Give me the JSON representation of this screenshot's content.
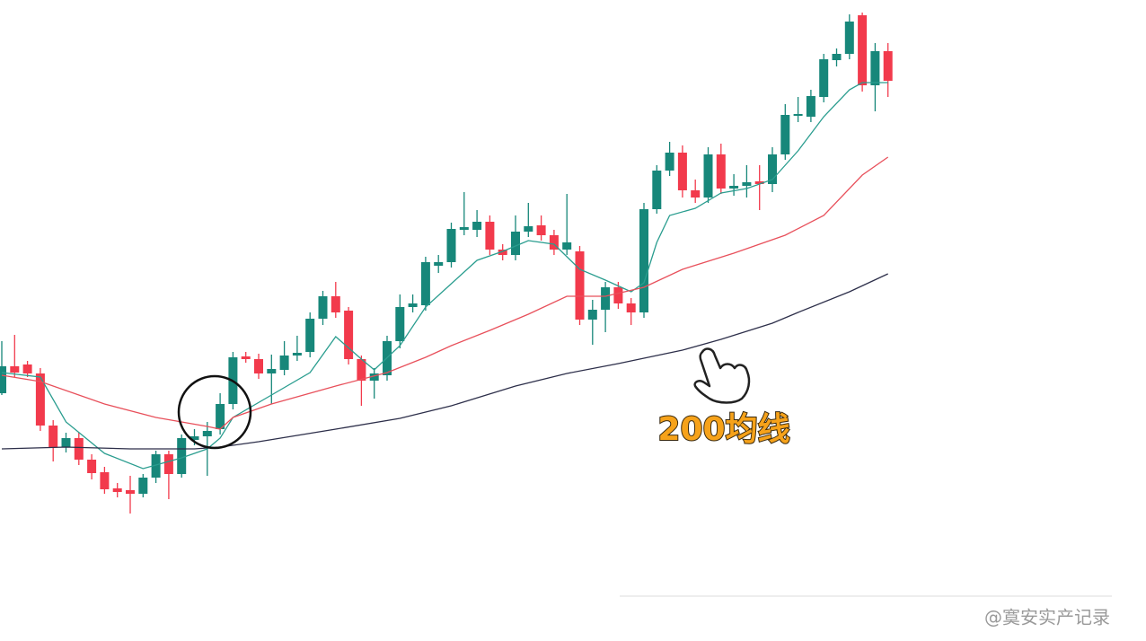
{
  "chart_data": {
    "type": "candlestick",
    "ylim": [
      0,
      714
    ],
    "up_color": "#17877a",
    "down_color": "#f23a4c",
    "open": [
      276,
      306,
      308,
      298,
      240,
      216,
      226,
      202,
      188,
      170,
      168,
      164,
      182,
      208,
      186,
      224,
      228,
      236,
      264,
      317,
      314,
      298,
      302,
      318,
      322,
      359,
      384,
      368,
      314,
      290,
      296,
      334,
      372,
      374,
      418,
      422,
      458,
      458,
      467,
      436,
      430,
      456,
      463,
      452,
      436,
      434,
      358,
      369,
      394,
      376,
      366,
      481,
      524,
      544,
      502,
      494,
      542,
      504,
      507,
      512,
      509,
      542,
      585,
      584,
      606,
      647,
      654,
      697,
      619,
      657
    ],
    "close": [
      306,
      299,
      298,
      240,
      216,
      226,
      202,
      187,
      169,
      166,
      164,
      182,
      208,
      186,
      226,
      228,
      234,
      264,
      316,
      314,
      298,
      303,
      318,
      321,
      359,
      384,
      366,
      314,
      290,
      298,
      334,
      372,
      376,
      422,
      422,
      459,
      461,
      467,
      436,
      430,
      456,
      462,
      452,
      436,
      444,
      358,
      369,
      394,
      376,
      366,
      481,
      524,
      544,
      502,
      494,
      542,
      504,
      507,
      511,
      509,
      542,
      586,
      587,
      607,
      648,
      654,
      690,
      619,
      657,
      624
    ],
    "high": [
      334,
      341,
      312,
      304,
      246,
      232,
      232,
      208,
      194,
      176,
      184,
      186,
      212,
      212,
      230,
      236,
      244,
      276,
      322,
      322,
      320,
      319,
      334,
      340,
      366,
      390,
      400,
      372,
      318,
      304,
      340,
      386,
      386,
      428,
      430,
      466,
      500,
      480,
      474,
      442,
      474,
      488,
      474,
      458,
      498,
      440,
      380,
      400,
      400,
      382,
      488,
      530,
      556,
      552,
      514,
      550,
      554,
      520,
      530,
      530,
      550,
      598,
      606,
      614,
      654,
      660,
      698,
      700,
      666,
      666
    ],
    "low": [
      274,
      294,
      294,
      234,
      200,
      210,
      196,
      180,
      164,
      160,
      142,
      160,
      176,
      158,
      182,
      218,
      184,
      230,
      258,
      310,
      292,
      264,
      296,
      312,
      316,
      352,
      360,
      308,
      262,
      270,
      290,
      326,
      366,
      368,
      410,
      416,
      452,
      450,
      430,
      424,
      424,
      450,
      446,
      430,
      430,
      352,
      330,
      344,
      370,
      352,
      360,
      476,
      518,
      494,
      488,
      488,
      498,
      496,
      494,
      480,
      500,
      536,
      578,
      578,
      600,
      640,
      648,
      612,
      590,
      606
    ],
    "lines": [
      {
        "color": "#2a9d8f",
        "x": [
          0,
          3,
          5,
          8,
          11,
          14,
          16,
          17,
          18,
          21,
          24,
          26,
          28,
          29,
          31,
          33,
          35,
          37,
          39,
          41,
          43,
          45,
          47,
          49,
          50,
          51,
          52,
          54,
          56,
          58,
          60,
          62,
          64,
          66,
          67,
          69
        ],
        "values": [
          299,
          294,
          244,
          209,
          192,
          204,
          214,
          226,
          249,
          274,
          299,
          339,
          314,
          302,
          329,
          372,
          398,
          424,
          434,
          446,
          442,
          414,
          402,
          389,
          399,
          444,
          474,
          482,
          499,
          504,
          514,
          546,
          584,
          614,
          622,
          622
        ]
      },
      {
        "color": "#e8505b",
        "x": [
          0,
          3,
          8,
          12,
          16,
          17,
          18,
          21,
          26,
          30,
          33,
          35,
          38,
          41,
          44,
          47,
          50,
          53,
          57,
          61,
          64,
          67,
          69
        ],
        "values": [
          296,
          289,
          264,
          249,
          239,
          236,
          249,
          264,
          284,
          299,
          316,
          329,
          346,
          364,
          384,
          384,
          394,
          414,
          432,
          452,
          474,
          519,
          539
        ]
      },
      {
        "color": "#2d2f4a",
        "x": [
          0,
          5,
          10,
          15,
          17,
          20,
          26,
          31,
          35,
          40,
          44,
          48,
          53,
          56,
          60,
          62,
          66,
          69
        ],
        "values": [
          214,
          216,
          214,
          214,
          216,
          222,
          236,
          248,
          262,
          284,
          298,
          309,
          324,
          336,
          354,
          366,
          389,
          409
        ]
      }
    ],
    "annotation": "200均线",
    "watermark": "@寞安实产记录"
  }
}
